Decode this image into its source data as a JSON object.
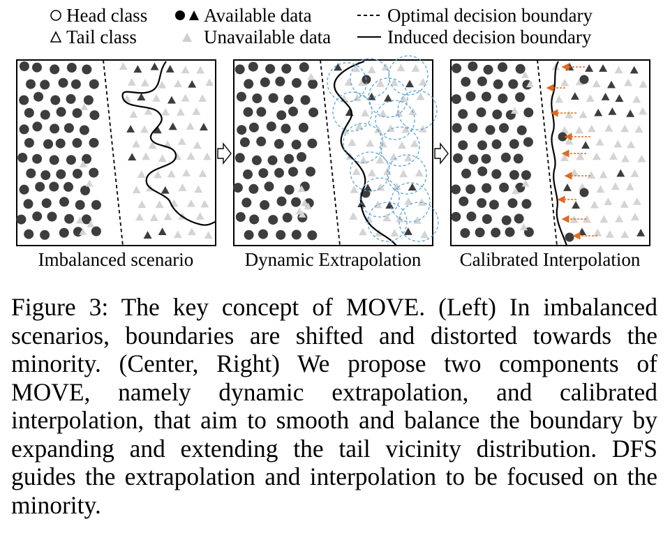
{
  "legend": {
    "head_class": "Head class",
    "tail_class": "Tail class",
    "available_data": "Available data",
    "unavailable_data": "Unavailable data",
    "optimal_boundary": "Optimal decision boundary",
    "induced_boundary": "Induced decision boundary"
  },
  "panels": [
    {
      "label": "Imbalanced scenario"
    },
    {
      "label": "Dynamic Extrapolation"
    },
    {
      "label": "Calibrated Interpolation"
    }
  ],
  "colors": {
    "head_point": "#3d3d3d",
    "tail_available": "#3d3d3d",
    "tail_unavailable": "#d4d4d4",
    "extrapolation_circle": "#5aa3d8",
    "interpolation_arrow": "#e06a1f"
  },
  "icons": [
    "hollow-circle-icon",
    "hollow-triangle-icon",
    "filled-circle-icon",
    "filled-triangle-icon",
    "gray-triangle-icon",
    "dashed-line-icon",
    "solid-line-icon",
    "flow-arrow-icon"
  ],
  "caption": "Figure 3: The key concept of MOVE. (Left) In imbalanced scenarios, boundaries are shifted and distorted towards the minority. (Center, Right) We propose two components of MOVE, namely dynamic extrapolation, and calibrated interpolation, that aim to smooth and balance the boundary by expanding and extending the tail vicinity distribution. DFS guides the extrapolation and interpolation to be focused on the minority."
}
